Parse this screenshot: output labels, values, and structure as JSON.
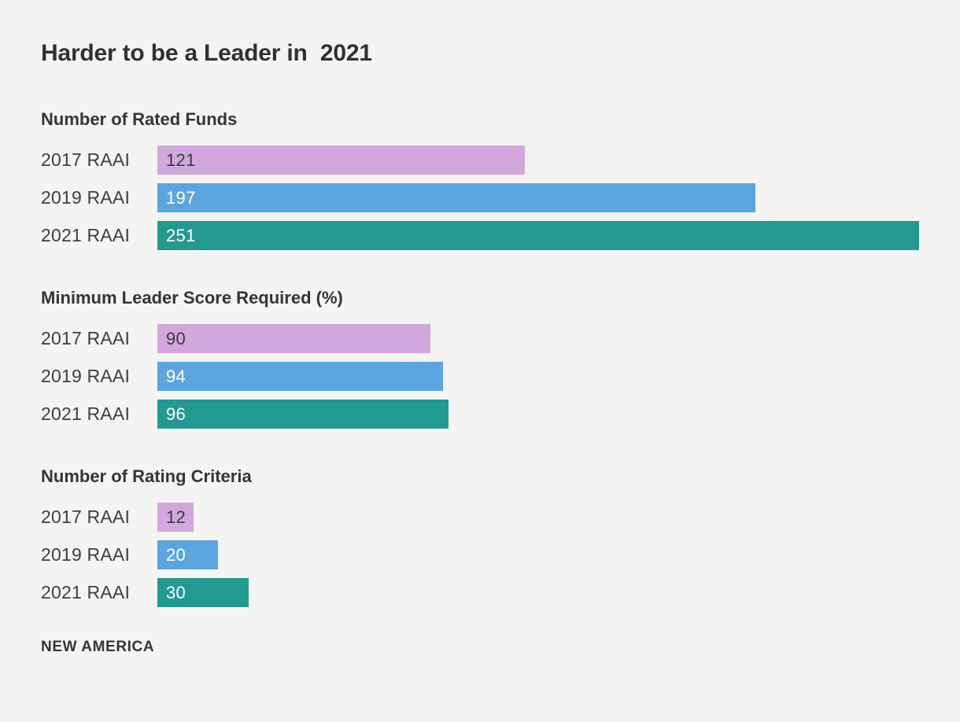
{
  "page": {
    "background_color": "#f4f4f3"
  },
  "title": "Harder to be a Leader in  2021",
  "footer": {
    "source": "NEW AMERICA"
  },
  "chart_data": {
    "type": "bar",
    "orientation": "horizontal",
    "shared_scale_max": 251,
    "grid": false,
    "legend": "none",
    "series": [
      {
        "name": "2017 RAAI",
        "color": "#d2a7dd",
        "value_text_color": "#3a3c3e"
      },
      {
        "name": "2019 RAAI",
        "color": "#5ba5e1",
        "value_text_color": "#ffffff"
      },
      {
        "name": "2021 RAAI",
        "color": "#229a91",
        "value_text_color": "#ffffff"
      }
    ],
    "charts": [
      {
        "title": "Number of Rated Funds",
        "categories": [
          "2017 RAAI",
          "2019 RAAI",
          "2021 RAAI"
        ],
        "values": [
          121,
          197,
          251
        ]
      },
      {
        "title": "Minimum Leader Score Required (%)",
        "categories": [
          "2017 RAAI",
          "2019 RAAI",
          "2021 RAAI"
        ],
        "values": [
          90,
          94,
          96
        ]
      },
      {
        "title": "Number of Rating Criteria",
        "categories": [
          "2017 RAAI",
          "2019 RAAI",
          "2021 RAAI"
        ],
        "values": [
          12,
          20,
          30
        ]
      }
    ]
  }
}
